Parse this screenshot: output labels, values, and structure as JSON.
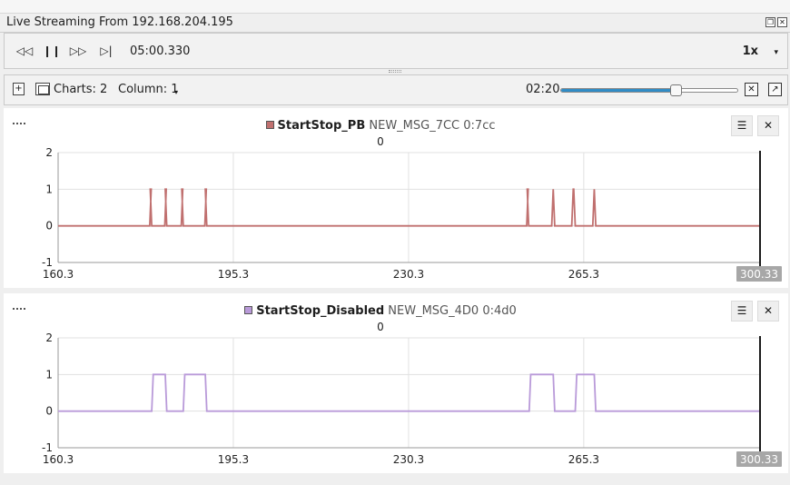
{
  "window": {
    "title": "Live Streaming From 192.168.204.195"
  },
  "toolbar": {
    "time": "05:00.330",
    "speed": "1x"
  },
  "charts_bar": {
    "charts_label": "Charts: 2",
    "column_label": "Column: 1",
    "slider_time": "02:20",
    "slider_position": 0.65
  },
  "panels": [
    {
      "signal": "StartStop_PB",
      "message": "NEW_MSG_7CC 0:7cc",
      "value": "0",
      "color": "#c0706f",
      "x_ticks": [
        "160.3",
        "195.3",
        "230.3",
        "265.3"
      ],
      "cursor_label": "300.33",
      "chart_data": {
        "type": "line",
        "x_range": [
          160.3,
          300.33
        ],
        "ylim": [
          -1,
          2
        ],
        "y_ticks": [
          "2",
          "1",
          "0",
          "-1"
        ],
        "grid": true,
        "pulses": [
          [
            178.6,
            179.0
          ],
          [
            181.6,
            182.0
          ],
          [
            184.9,
            185.3
          ],
          [
            189.6,
            190.0
          ],
          [
            253.9,
            254.3
          ],
          [
            258.9,
            259.5
          ],
          [
            262.9,
            263.6
          ],
          [
            267.1,
            267.7
          ]
        ]
      }
    },
    {
      "signal": "StartStop_Disabled",
      "message": "NEW_MSG_4D0 0:4d0",
      "value": "0",
      "color": "#b99ad9",
      "x_ticks": [
        "160.3",
        "195.3",
        "230.3",
        "265.3"
      ],
      "cursor_label": "300.33",
      "chart_data": {
        "type": "line",
        "x_range": [
          160.3,
          300.33
        ],
        "ylim": [
          -1,
          2
        ],
        "y_ticks": [
          "2",
          "1",
          "0",
          "-1"
        ],
        "grid": true,
        "pulses": [
          [
            179.0,
            182.0
          ],
          [
            185.3,
            190.0
          ],
          [
            254.4,
            259.5
          ],
          [
            263.6,
            267.7
          ]
        ]
      }
    }
  ]
}
